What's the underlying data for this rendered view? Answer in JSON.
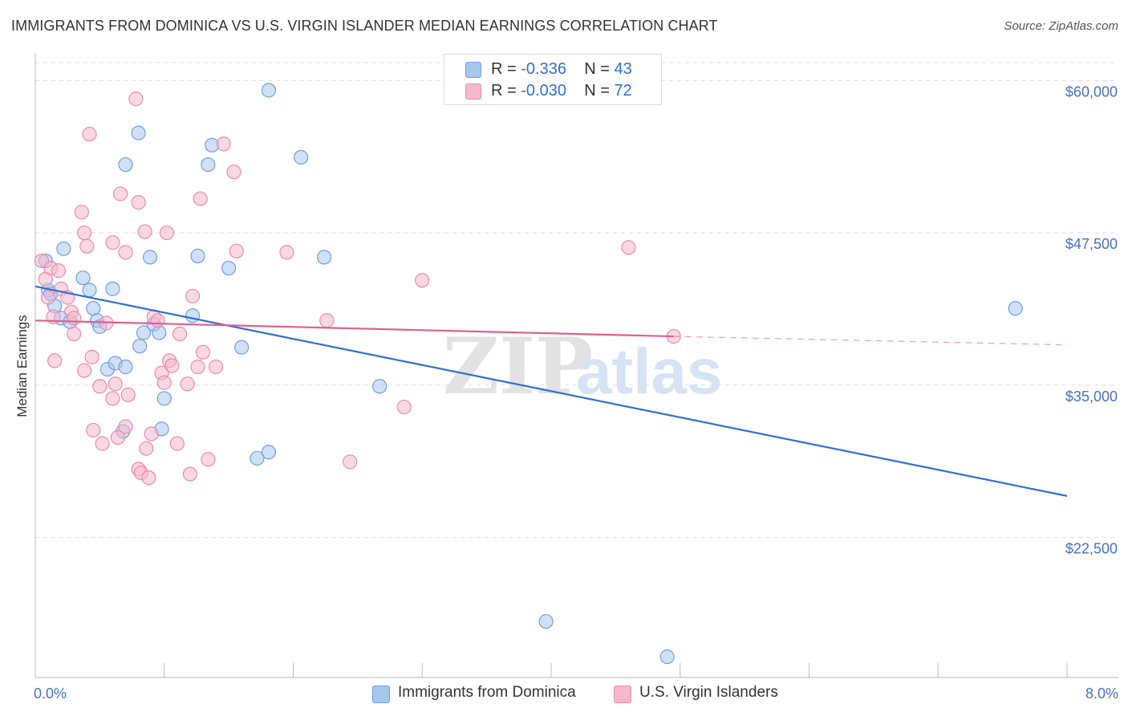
{
  "title": "IMMIGRANTS FROM DOMINICA VS U.S. VIRGIN ISLANDER MEDIAN EARNINGS CORRELATION CHART",
  "source": "Source: ZipAtlas.com",
  "watermark": {
    "zip": "ZIP",
    "atlas": "atlas"
  },
  "legend": {
    "rows": [
      {
        "r_label": "R = ",
        "r_value": "-0.336",
        "n_label": "N = ",
        "n_value": "43",
        "color": "#a9c6f0"
      },
      {
        "r_label": "R = ",
        "r_value": "-0.030",
        "n_label": "N = ",
        "n_value": "72",
        "color": "#f5b8cc"
      }
    ]
  },
  "bottom_legend": [
    {
      "label": "Immigrants from Dominica",
      "color": "#a9c6f0"
    },
    {
      "label": "U.S. Virgin Islanders",
      "color": "#f5b8cc"
    }
  ],
  "chart_data": {
    "type": "scatter",
    "xlabel": "",
    "ylabel": "Median Earnings",
    "xlim": [
      0,
      8
    ],
    "ylim": [
      11000,
      62000
    ],
    "x_tick_labels": [
      {
        "value": 0,
        "label": "0.0%"
      },
      {
        "value": 8,
        "label": "8.0%"
      }
    ],
    "y_ticks": [
      {
        "value": 22500,
        "label": "$22,500"
      },
      {
        "value": 35000,
        "label": "$35,000"
      },
      {
        "value": 47500,
        "label": "$47,500"
      },
      {
        "value": 60000,
        "label": "$60,000"
      }
    ],
    "grid": true,
    "series": [
      {
        "name": "Immigrants from Dominica",
        "color": "#6fa0e4",
        "fill": "#a9c6f0",
        "points": [
          [
            0.08,
            45200
          ],
          [
            0.1,
            42800
          ],
          [
            0.12,
            42500
          ],
          [
            0.15,
            41500
          ],
          [
            0.2,
            40500
          ],
          [
            0.22,
            46200
          ],
          [
            0.27,
            40200
          ],
          [
            0.37,
            43800
          ],
          [
            0.42,
            42800
          ],
          [
            0.45,
            41300
          ],
          [
            0.48,
            40300
          ],
          [
            0.5,
            39800
          ],
          [
            0.6,
            42900
          ],
          [
            0.56,
            36300
          ],
          [
            0.62,
            36800
          ],
          [
            0.68,
            31200
          ],
          [
            0.7,
            36500
          ],
          [
            0.7,
            53100
          ],
          [
            0.8,
            55700
          ],
          [
            0.81,
            38200
          ],
          [
            0.84,
            39300
          ],
          [
            0.89,
            45500
          ],
          [
            0.92,
            40000
          ],
          [
            0.96,
            39300
          ],
          [
            0.98,
            31400
          ],
          [
            1.0,
            33900
          ],
          [
            1.22,
            40700
          ],
          [
            1.26,
            45600
          ],
          [
            1.34,
            53100
          ],
          [
            1.37,
            54700
          ],
          [
            1.5,
            44600
          ],
          [
            1.6,
            38100
          ],
          [
            1.72,
            29000
          ],
          [
            1.81,
            29500
          ],
          [
            1.81,
            59200
          ],
          [
            2.06,
            53700
          ],
          [
            2.24,
            45500
          ],
          [
            2.67,
            34900
          ],
          [
            3.96,
            15600
          ],
          [
            4.9,
            12700
          ],
          [
            7.6,
            41300
          ]
        ],
        "trend": {
          "x": [
            0.0,
            8.0
          ],
          "y": [
            43100,
            25900
          ]
        }
      },
      {
        "name": "U.S. Virgin Islanders",
        "color": "#ee8aaa",
        "fill": "#f5b8cc",
        "points": [
          [
            0.05,
            45200
          ],
          [
            0.08,
            43700
          ],
          [
            0.1,
            42200
          ],
          [
            0.12,
            44600
          ],
          [
            0.14,
            40600
          ],
          [
            0.15,
            37000
          ],
          [
            0.18,
            44400
          ],
          [
            0.2,
            42900
          ],
          [
            0.25,
            42200
          ],
          [
            0.28,
            41000
          ],
          [
            0.3,
            39200
          ],
          [
            0.3,
            40500
          ],
          [
            0.36,
            49200
          ],
          [
            0.38,
            36200
          ],
          [
            0.38,
            47500
          ],
          [
            0.4,
            46400
          ],
          [
            0.42,
            55600
          ],
          [
            0.44,
            37300
          ],
          [
            0.45,
            31300
          ],
          [
            0.5,
            34900
          ],
          [
            0.52,
            30200
          ],
          [
            0.55,
            40100
          ],
          [
            0.6,
            46700
          ],
          [
            0.6,
            33900
          ],
          [
            0.62,
            35100
          ],
          [
            0.64,
            30700
          ],
          [
            0.66,
            50700
          ],
          [
            0.7,
            45900
          ],
          [
            0.7,
            31600
          ],
          [
            0.72,
            34200
          ],
          [
            0.78,
            58500
          ],
          [
            0.8,
            50000
          ],
          [
            0.8,
            28100
          ],
          [
            0.82,
            27800
          ],
          [
            0.85,
            47600
          ],
          [
            0.86,
            29800
          ],
          [
            0.88,
            27400
          ],
          [
            0.9,
            31000
          ],
          [
            0.92,
            40600
          ],
          [
            0.95,
            40300
          ],
          [
            0.98,
            36000
          ],
          [
            1.0,
            35200
          ],
          [
            1.02,
            47500
          ],
          [
            1.04,
            37000
          ],
          [
            1.06,
            36600
          ],
          [
            1.1,
            30200
          ],
          [
            1.12,
            39200
          ],
          [
            1.18,
            35100
          ],
          [
            1.2,
            27700
          ],
          [
            1.22,
            42300
          ],
          [
            1.26,
            36500
          ],
          [
            1.28,
            50300
          ],
          [
            1.3,
            37700
          ],
          [
            1.34,
            28900
          ],
          [
            1.4,
            36500
          ],
          [
            1.46,
            54800
          ],
          [
            1.54,
            52500
          ],
          [
            1.56,
            46000
          ],
          [
            1.95,
            45900
          ],
          [
            2.26,
            40300
          ],
          [
            2.44,
            28700
          ],
          [
            2.86,
            33200
          ],
          [
            3.0,
            43600
          ],
          [
            4.6,
            46300
          ],
          [
            4.95,
            39000
          ]
        ],
        "trend": {
          "x": [
            0.0,
            4.95
          ],
          "y": [
            40300,
            39000
          ]
        },
        "trend_dashed": {
          "x": [
            4.95,
            8.0
          ],
          "y": [
            39000,
            38300
          ]
        }
      }
    ]
  }
}
